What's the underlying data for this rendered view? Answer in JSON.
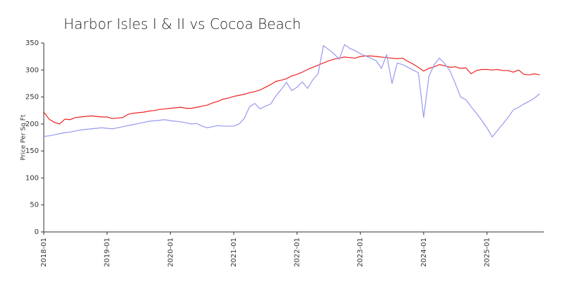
{
  "chart_data": {
    "type": "line",
    "title": "Harbor Isles I & II vs Cocoa Beach",
    "y_label": "Price Per Sq Ft",
    "x": [
      "2018-01",
      "2018-02",
      "2018-03",
      "2018-04",
      "2018-05",
      "2018-06",
      "2018-07",
      "2018-08",
      "2018-09",
      "2018-10",
      "2018-11",
      "2018-12",
      "2019-01",
      "2019-02",
      "2019-03",
      "2019-04",
      "2019-05",
      "2019-06",
      "2019-07",
      "2019-08",
      "2019-09",
      "2019-10",
      "2019-11",
      "2019-12",
      "2020-01",
      "2020-02",
      "2020-03",
      "2020-04",
      "2020-05",
      "2020-06",
      "2020-07",
      "2020-08",
      "2020-09",
      "2020-10",
      "2020-11",
      "2020-12",
      "2021-01",
      "2021-02",
      "2021-03",
      "2021-04",
      "2021-05",
      "2021-06",
      "2021-07",
      "2021-08",
      "2021-09",
      "2021-10",
      "2021-11",
      "2021-12",
      "2022-01",
      "2022-02",
      "2022-03",
      "2022-04",
      "2022-05",
      "2022-06",
      "2022-07",
      "2022-08",
      "2022-09",
      "2022-10",
      "2022-11",
      "2022-12",
      "2023-01",
      "2023-02",
      "2023-03",
      "2023-04",
      "2023-05",
      "2023-06",
      "2023-07",
      "2023-08",
      "2023-09",
      "2023-10",
      "2023-11",
      "2023-12",
      "2024-01",
      "2024-02",
      "2024-03",
      "2024-04",
      "2024-05",
      "2024-06",
      "2024-07",
      "2024-08",
      "2024-09",
      "2024-10",
      "2024-11",
      "2024-12",
      "2025-01",
      "2025-02",
      "2025-03",
      "2025-04",
      "2025-05",
      "2025-06",
      "2025-07",
      "2025-08",
      "2025-09",
      "2025-10",
      "2025-11"
    ],
    "xticks": [
      "2018-01",
      "2019-01",
      "2020-01",
      "2021-01",
      "2022-01",
      "2023-01",
      "2024-01",
      "2025-01"
    ],
    "series": [
      {
        "color": "#ee2222",
        "values": [
          222,
          209,
          203,
          200,
          209,
          208,
          212,
          213,
          214,
          215,
          214,
          213,
          213,
          210,
          211,
          212,
          218,
          220,
          221,
          222,
          224,
          225,
          227,
          228,
          229,
          230,
          231,
          229,
          229,
          231,
          233,
          235,
          239,
          242,
          246,
          248,
          251,
          253,
          255,
          258,
          260,
          263,
          268,
          273,
          279,
          281,
          284,
          289,
          292,
          296,
          301,
          305,
          309,
          313,
          317,
          320,
          322,
          324,
          323,
          322,
          325,
          326,
          326,
          325,
          324,
          323,
          322,
          321,
          322,
          316,
          311,
          305,
          298,
          303,
          306,
          310,
          308,
          305,
          306,
          303,
          304,
          293,
          299,
          301,
          301,
          300,
          301,
          299,
          299,
          296,
          300,
          292,
          291,
          293,
          291
        ]
      },
      {
        "color": "#9999ee",
        "values": [
          177,
          178,
          180,
          182,
          184,
          185,
          187,
          189,
          190,
          191,
          192,
          193,
          192,
          191,
          193,
          195,
          197,
          199,
          201,
          203,
          205,
          206,
          207,
          208,
          206,
          205,
          204,
          202,
          200,
          201,
          196,
          193,
          195,
          197,
          196,
          196,
          196,
          200,
          210,
          232,
          238,
          228,
          233,
          237,
          252,
          264,
          277,
          262,
          268,
          278,
          266,
          282,
          293,
          345,
          338,
          330,
          320,
          347,
          340,
          336,
          330,
          326,
          322,
          317,
          303,
          328,
          275,
          313,
          310,
          305,
          300,
          295,
          212,
          288,
          310,
          322,
          312,
          298,
          275,
          250,
          245,
          232,
          220,
          207,
          193,
          176,
          188,
          200,
          212,
          226,
          231,
          237,
          242,
          248,
          256
        ]
      }
    ],
    "ylim": [
      0,
      350
    ],
    "yticks": [
      0,
      50,
      100,
      150,
      200,
      250,
      300,
      350
    ]
  }
}
